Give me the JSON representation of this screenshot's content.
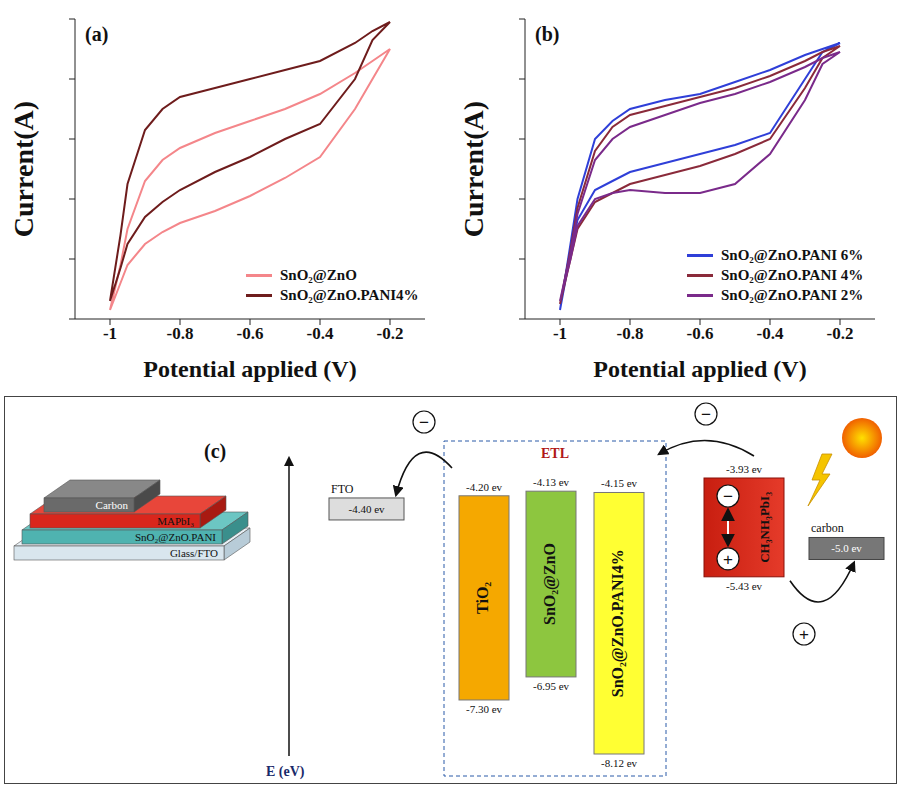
{
  "chart_data": [
    {
      "type": "line",
      "label": "(a)",
      "x_label": "Potential applied (V)",
      "y_label": "Current(A)",
      "x": [
        -1,
        -0.97,
        -0.95,
        -0.9,
        -0.85,
        -0.8,
        -0.7,
        -0.6,
        -0.5,
        -0.4,
        -0.3,
        -0.25,
        -0.2,
        -0.25,
        -0.3,
        -0.4,
        -0.5,
        -0.6,
        -0.7,
        -0.8,
        -0.85,
        -0.9,
        -0.95,
        -0.97,
        -1
      ],
      "xlim": [
        -1.1,
        -0.1
      ],
      "xticks": [
        -1,
        -0.8,
        -0.6,
        -0.4,
        -0.2
      ],
      "ylim": [
        0,
        10
      ],
      "yticks": [
        0,
        2,
        4,
        6,
        8,
        10
      ],
      "tick_labels": "x",
      "legend": "lower right",
      "series": [
        {
          "name": "SnO₂@ZnO",
          "color": "#f4868a",
          "values": [
            0.3,
            1.8,
            3.0,
            4.6,
            5.3,
            5.7,
            6.2,
            6.6,
            7.0,
            7.5,
            8.2,
            8.6,
            9.0,
            8.0,
            7.0,
            5.4,
            4.7,
            4.1,
            3.6,
            3.2,
            2.9,
            2.5,
            1.8,
            1.2,
            0.3
          ]
        },
        {
          "name": "SnO₂@ZnO.PANI4%",
          "color": "#6e1c1c",
          "values": [
            0.6,
            2.8,
            4.5,
            6.3,
            7.0,
            7.4,
            7.7,
            8.0,
            8.3,
            8.6,
            9.2,
            9.6,
            9.9,
            9.3,
            8.0,
            6.5,
            6.0,
            5.4,
            4.9,
            4.3,
            3.9,
            3.4,
            2.5,
            1.7,
            0.6
          ]
        }
      ]
    },
    {
      "type": "line",
      "label": "(b)",
      "x_label": "Potential applied (V)",
      "y_label": "Current(A)",
      "x": [
        -1,
        -0.97,
        -0.95,
        -0.9,
        -0.85,
        -0.8,
        -0.7,
        -0.6,
        -0.5,
        -0.4,
        -0.3,
        -0.25,
        -0.2,
        -0.25,
        -0.3,
        -0.4,
        -0.5,
        -0.6,
        -0.7,
        -0.8,
        -0.85,
        -0.9,
        -0.95,
        -0.97,
        -1
      ],
      "xlim": [
        -1.1,
        -0.1
      ],
      "xticks": [
        -1,
        -0.8,
        -0.6,
        -0.4,
        -0.2
      ],
      "ylim": [
        0,
        10
      ],
      "yticks": [
        0,
        2,
        4,
        6,
        8,
        10
      ],
      "tick_labels": "x",
      "legend": "lower right",
      "series": [
        {
          "name": "SnO₂@ZnO.PANI 6%",
          "color": "#2f3fd8",
          "values": [
            0.3,
            2.5,
            4.0,
            6.0,
            6.6,
            7.0,
            7.3,
            7.5,
            7.9,
            8.3,
            8.8,
            9.0,
            9.2,
            8.9,
            8.0,
            6.2,
            5.8,
            5.5,
            5.2,
            4.9,
            4.6,
            4.3,
            3.3,
            2.2,
            0.3
          ]
        },
        {
          "name": "SnO₂@ZnO.PANI 4%",
          "color": "#8a2a3a",
          "values": [
            0.5,
            2.3,
            3.7,
            5.6,
            6.4,
            6.8,
            7.1,
            7.4,
            7.7,
            8.1,
            8.6,
            8.9,
            9.1,
            8.7,
            7.7,
            6.0,
            5.5,
            5.1,
            4.8,
            4.5,
            4.2,
            3.9,
            3.0,
            2.0,
            0.5
          ]
        },
        {
          "name": "SnO₂@ZnO.PANI 2%",
          "color": "#7a2a8a",
          "values": [
            0.6,
            2.2,
            3.5,
            5.3,
            6.0,
            6.4,
            6.8,
            7.2,
            7.5,
            7.9,
            8.4,
            8.7,
            8.9,
            8.5,
            7.3,
            5.5,
            4.5,
            4.2,
            4.2,
            4.3,
            4.2,
            4.0,
            3.1,
            2.0,
            0.6
          ]
        }
      ]
    }
  ],
  "diagram": {
    "label": "(c)",
    "axis_label": "E (eV)",
    "device_layers": [
      "Carbon",
      "MAPbI₃",
      "SnO₂@ZnO.PANI",
      "Glass/FTO"
    ],
    "group_label": "ETL",
    "electron": "−",
    "hole": "+",
    "electrode_left": {
      "name": "FTO",
      "value": -4.4,
      "label": "-4.40 ev"
    },
    "electrode_right": {
      "name": "carbon",
      "value": -5.0,
      "label": "-5.0 ev"
    },
    "etl": [
      {
        "name": "TiO₂",
        "color": "#f5a800",
        "top": {
          "value": -4.2,
          "label": "-4.20 ev"
        },
        "bottom": {
          "value": -7.3,
          "label": "-7.30 ev"
        }
      },
      {
        "name": "SnO₂@ZnO",
        "color": "#8dc63f",
        "top": {
          "value": -4.13,
          "label": "-4.13 ev"
        },
        "bottom": {
          "value": -6.95,
          "label": "-6.95 ev"
        }
      },
      {
        "name": "SnO₂@ZnO.PANI4%",
        "color": "#ffff33",
        "top": {
          "value": -4.15,
          "label": "-4.15 ev"
        },
        "bottom": {
          "value": -8.12,
          "label": "-8.12 ev"
        }
      }
    ],
    "absorber": {
      "name": "CH₃NH₃PbI₃",
      "color": "#e53b2a",
      "top": {
        "value": -3.93,
        "label": "-3.93 ev"
      },
      "bottom": {
        "value": -5.43,
        "label": "-5.43 ev"
      }
    }
  }
}
